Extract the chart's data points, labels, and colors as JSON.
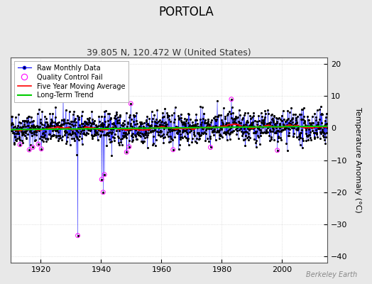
{
  "title": "PORTOLA",
  "subtitle": "39.805 N, 120.472 W (United States)",
  "ylabel": "Temperature Anomaly (°C)",
  "xlim": [
    1910,
    2015
  ],
  "ylim": [
    -42,
    22
  ],
  "yticks": [
    -40,
    -30,
    -20,
    -10,
    0,
    10,
    20
  ],
  "xticks": [
    1920,
    1940,
    1960,
    1980,
    2000
  ],
  "bg_color": "#e8e8e8",
  "plot_bg_color": "#ffffff",
  "grid_color": "#cccccc",
  "raw_line_color": "#0000ff",
  "raw_dot_color": "#000000",
  "qc_fail_color": "#ff00ff",
  "moving_avg_color": "#ff0000",
  "trend_color": "#00cc00",
  "seed": 42,
  "start_year": 1910,
  "end_year": 2014,
  "watermark": "Berkeley Earth",
  "title_fontsize": 12,
  "subtitle_fontsize": 9,
  "ylabel_fontsize": 8,
  "tick_fontsize": 8,
  "legend_fontsize": 7
}
